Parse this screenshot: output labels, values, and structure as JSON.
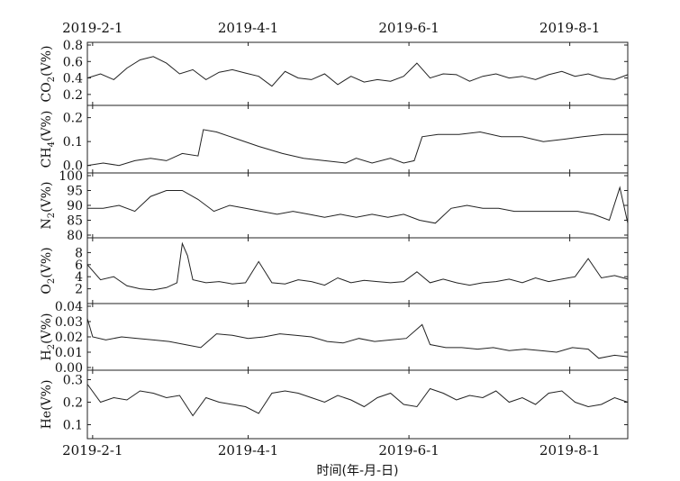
{
  "chart_data": {
    "type": "line",
    "xlabel": "时间(年-月-日)",
    "date_ticks": [
      "2019-2-1",
      "2019-4-1",
      "2019-6-1",
      "2019-8-1"
    ],
    "x_range": [
      "2019-01-30",
      "2019-08-23"
    ],
    "line_color": "#222222",
    "panels": [
      {
        "name": "CO2",
        "ylabel_main": "CO",
        "ylabel_sub": "2",
        "ylabel_unit": "(V%)",
        "ylim": [
          0.1,
          0.8
        ],
        "yticks": [
          "0.2",
          "0.4",
          "0.6",
          "0.8"
        ],
        "ytick_values": [
          0.2,
          0.4,
          0.6,
          0.8
        ],
        "x": [
          "2019-01-30",
          "2019-02-04",
          "2019-02-09",
          "2019-02-14",
          "2019-02-19",
          "2019-02-24",
          "2019-03-01",
          "2019-03-06",
          "2019-03-11",
          "2019-03-16",
          "2019-03-21",
          "2019-03-26",
          "2019-03-31",
          "2019-04-05",
          "2019-04-10",
          "2019-04-15",
          "2019-04-20",
          "2019-04-25",
          "2019-04-30",
          "2019-05-05",
          "2019-05-10",
          "2019-05-15",
          "2019-05-20",
          "2019-05-25",
          "2019-05-30",
          "2019-06-04",
          "2019-06-09",
          "2019-06-14",
          "2019-06-19",
          "2019-06-24",
          "2019-06-29",
          "2019-07-04",
          "2019-07-09",
          "2019-07-14",
          "2019-07-19",
          "2019-07-24",
          "2019-07-29",
          "2019-08-03",
          "2019-08-08",
          "2019-08-13",
          "2019-08-18",
          "2019-08-23"
        ],
        "values": [
          0.4,
          0.45,
          0.38,
          0.52,
          0.62,
          0.66,
          0.58,
          0.45,
          0.5,
          0.38,
          0.47,
          0.5,
          0.46,
          0.42,
          0.3,
          0.48,
          0.4,
          0.38,
          0.45,
          0.32,
          0.42,
          0.35,
          0.38,
          0.36,
          0.42,
          0.58,
          0.4,
          0.45,
          0.44,
          0.36,
          0.42,
          0.45,
          0.4,
          0.42,
          0.38,
          0.44,
          0.48,
          0.42,
          0.45,
          0.4,
          0.38,
          0.44
        ]
      },
      {
        "name": "CH4",
        "ylabel_main": "CH",
        "ylabel_sub": "4",
        "ylabel_unit": "(V%)",
        "ylim": [
          -0.02,
          0.24
        ],
        "yticks": [
          "0.0",
          "0.1",
          "0.2"
        ],
        "ytick_values": [
          0.0,
          0.1,
          0.2
        ],
        "x": [
          "2019-01-30",
          "2019-02-05",
          "2019-02-11",
          "2019-02-17",
          "2019-02-23",
          "2019-03-01",
          "2019-03-07",
          "2019-03-13",
          "2019-03-15",
          "2019-03-20",
          "2019-03-28",
          "2019-04-05",
          "2019-04-14",
          "2019-04-22",
          "2019-04-30",
          "2019-05-08",
          "2019-05-12",
          "2019-05-18",
          "2019-05-25",
          "2019-05-30",
          "2019-06-03",
          "2019-06-06",
          "2019-06-12",
          "2019-06-20",
          "2019-06-28",
          "2019-07-06",
          "2019-07-14",
          "2019-07-22",
          "2019-07-30",
          "2019-08-06",
          "2019-08-14",
          "2019-08-23"
        ],
        "values": [
          0.0,
          0.01,
          0.0,
          0.02,
          0.03,
          0.02,
          0.05,
          0.04,
          0.15,
          0.14,
          0.11,
          0.08,
          0.05,
          0.03,
          0.02,
          0.01,
          0.03,
          0.01,
          0.03,
          0.01,
          0.02,
          0.12,
          0.13,
          0.13,
          0.14,
          0.12,
          0.12,
          0.1,
          0.11,
          0.12,
          0.13,
          0.13
        ]
      },
      {
        "name": "N2",
        "ylabel_main": "N",
        "ylabel_sub": "2",
        "ylabel_unit": "(V%)",
        "ylim": [
          80,
          100
        ],
        "yticks": [
          "80",
          "85",
          "90",
          "95",
          "100"
        ],
        "ytick_values": [
          80,
          85,
          90,
          95,
          100
        ],
        "x": [
          "2019-01-30",
          "2019-02-05",
          "2019-02-11",
          "2019-02-17",
          "2019-02-23",
          "2019-03-01",
          "2019-03-07",
          "2019-03-13",
          "2019-03-19",
          "2019-03-25",
          "2019-03-31",
          "2019-04-06",
          "2019-04-12",
          "2019-04-18",
          "2019-04-24",
          "2019-04-30",
          "2019-05-06",
          "2019-05-12",
          "2019-05-18",
          "2019-05-24",
          "2019-05-30",
          "2019-06-05",
          "2019-06-11",
          "2019-06-17",
          "2019-06-23",
          "2019-06-29",
          "2019-07-05",
          "2019-07-11",
          "2019-07-17",
          "2019-07-23",
          "2019-07-29",
          "2019-08-04",
          "2019-08-10",
          "2019-08-16",
          "2019-08-20",
          "2019-08-23"
        ],
        "values": [
          89,
          89,
          90,
          88,
          93,
          95,
          95,
          92,
          88,
          90,
          89,
          88,
          87,
          88,
          87,
          86,
          87,
          86,
          87,
          86,
          87,
          85,
          84,
          89,
          90,
          89,
          89,
          88,
          88,
          88,
          88,
          88,
          87,
          85,
          96,
          84
        ]
      },
      {
        "name": "O2",
        "ylabel_main": "O",
        "ylabel_sub": "2",
        "ylabel_unit": "(V%)",
        "ylim": [
          0,
          10
        ],
        "yticks": [
          "2",
          "4",
          "6",
          "8"
        ],
        "ytick_values": [
          2,
          4,
          6,
          8
        ],
        "x": [
          "2019-01-30",
          "2019-02-04",
          "2019-02-09",
          "2019-02-14",
          "2019-02-19",
          "2019-02-24",
          "2019-03-01",
          "2019-03-05",
          "2019-03-07",
          "2019-03-09",
          "2019-03-11",
          "2019-03-16",
          "2019-03-21",
          "2019-03-26",
          "2019-03-31",
          "2019-04-05",
          "2019-04-10",
          "2019-04-15",
          "2019-04-20",
          "2019-04-25",
          "2019-04-30",
          "2019-05-05",
          "2019-05-10",
          "2019-05-15",
          "2019-05-20",
          "2019-05-25",
          "2019-05-30",
          "2019-06-04",
          "2019-06-09",
          "2019-06-14",
          "2019-06-19",
          "2019-06-24",
          "2019-06-29",
          "2019-07-04",
          "2019-07-09",
          "2019-07-14",
          "2019-07-19",
          "2019-07-24",
          "2019-07-29",
          "2019-08-03",
          "2019-08-08",
          "2019-08-13",
          "2019-08-18",
          "2019-08-23"
        ],
        "values": [
          6.0,
          3.5,
          4.0,
          2.5,
          2.0,
          1.8,
          2.2,
          3.0,
          9.5,
          7.5,
          3.5,
          3.0,
          3.2,
          2.8,
          3.0,
          6.5,
          3.0,
          2.8,
          3.5,
          3.2,
          2.6,
          3.8,
          3.0,
          3.4,
          3.2,
          3.0,
          3.2,
          4.8,
          3.0,
          3.6,
          3.0,
          2.6,
          3.0,
          3.2,
          3.6,
          3.0,
          3.8,
          3.2,
          3.6,
          4.0,
          7.0,
          3.8,
          4.2,
          3.6
        ]
      },
      {
        "name": "H2",
        "ylabel_main": "H",
        "ylabel_sub": "2",
        "ylabel_unit": "(V%)",
        "ylim": [
          0,
          0.04
        ],
        "yticks": [
          "0.00",
          "0.01",
          "0.02",
          "0.03",
          "0.04"
        ],
        "ytick_values": [
          0.0,
          0.01,
          0.02,
          0.03,
          0.04
        ],
        "x": [
          "2019-01-30",
          "2019-02-01",
          "2019-02-06",
          "2019-02-12",
          "2019-02-18",
          "2019-02-24",
          "2019-03-02",
          "2019-03-08",
          "2019-03-14",
          "2019-03-20",
          "2019-03-26",
          "2019-04-01",
          "2019-04-07",
          "2019-04-13",
          "2019-04-19",
          "2019-04-25",
          "2019-05-01",
          "2019-05-07",
          "2019-05-13",
          "2019-05-19",
          "2019-05-25",
          "2019-05-31",
          "2019-06-06",
          "2019-06-09",
          "2019-06-15",
          "2019-06-21",
          "2019-06-27",
          "2019-07-03",
          "2019-07-09",
          "2019-07-15",
          "2019-07-21",
          "2019-07-27",
          "2019-08-02",
          "2019-08-08",
          "2019-08-12",
          "2019-08-18",
          "2019-08-23"
        ],
        "values": [
          0.032,
          0.02,
          0.018,
          0.02,
          0.019,
          0.018,
          0.017,
          0.015,
          0.013,
          0.022,
          0.021,
          0.019,
          0.02,
          0.022,
          0.021,
          0.02,
          0.017,
          0.016,
          0.019,
          0.017,
          0.018,
          0.019,
          0.028,
          0.015,
          0.013,
          0.013,
          0.012,
          0.013,
          0.011,
          0.012,
          0.011,
          0.01,
          0.013,
          0.012,
          0.006,
          0.008,
          0.007
        ]
      },
      {
        "name": "He",
        "ylabel_main": "He",
        "ylabel_sub": "",
        "ylabel_unit": "(V%)",
        "ylim": [
          0.05,
          0.33
        ],
        "yticks": [
          "0.1",
          "0.2",
          "0.3"
        ],
        "ytick_values": [
          0.1,
          0.2,
          0.3
        ],
        "x": [
          "2019-01-30",
          "2019-02-04",
          "2019-02-09",
          "2019-02-14",
          "2019-02-19",
          "2019-02-24",
          "2019-03-01",
          "2019-03-06",
          "2019-03-11",
          "2019-03-16",
          "2019-03-21",
          "2019-03-26",
          "2019-03-31",
          "2019-04-05",
          "2019-04-10",
          "2019-04-15",
          "2019-04-20",
          "2019-04-25",
          "2019-04-30",
          "2019-05-05",
          "2019-05-10",
          "2019-05-15",
          "2019-05-20",
          "2019-05-25",
          "2019-05-30",
          "2019-06-04",
          "2019-06-09",
          "2019-06-14",
          "2019-06-19",
          "2019-06-24",
          "2019-06-29",
          "2019-07-04",
          "2019-07-09",
          "2019-07-14",
          "2019-07-19",
          "2019-07-24",
          "2019-07-29",
          "2019-08-03",
          "2019-08-08",
          "2019-08-13",
          "2019-08-18",
          "2019-08-23"
        ],
        "values": [
          0.28,
          0.2,
          0.22,
          0.21,
          0.25,
          0.24,
          0.22,
          0.23,
          0.14,
          0.22,
          0.2,
          0.19,
          0.18,
          0.15,
          0.24,
          0.25,
          0.24,
          0.22,
          0.2,
          0.23,
          0.21,
          0.18,
          0.22,
          0.24,
          0.19,
          0.18,
          0.26,
          0.24,
          0.21,
          0.23,
          0.22,
          0.25,
          0.2,
          0.22,
          0.19,
          0.24,
          0.25,
          0.2,
          0.18,
          0.19,
          0.22,
          0.2
        ]
      }
    ]
  }
}
